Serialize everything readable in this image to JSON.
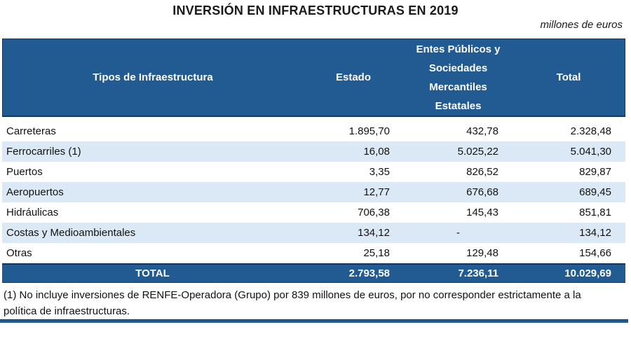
{
  "page": {
    "title": "INVERSIÓN EN INFRAESTRUCTURAS EN 2019",
    "unit_note": "millones de euros",
    "footnote": "(1) No incluye inversiones de RENFE-Operadora (Grupo) por 839 millones de euros, por no corresponder estrictamente a la política de infraestructuras."
  },
  "table": {
    "columns": {
      "infra": "Tipos de Infraestructura",
      "estado": "Estado",
      "entes_lines": [
        "Entes Públicos y",
        "Sociedades",
        "Mercantiles",
        "Estatales"
      ],
      "total": "Total"
    },
    "rows": [
      {
        "label": "Carreteras",
        "estado": "1.895,70",
        "entes": "432,78",
        "total": "2.328,48"
      },
      {
        "label": "Ferrocarriles (1)",
        "estado": "16,08",
        "entes": "5.025,22",
        "total": "5.041,30"
      },
      {
        "label": "Puertos",
        "estado": "3,35",
        "entes": "826,52",
        "total": "829,87"
      },
      {
        "label": "Aeropuertos",
        "estado": "12,77",
        "entes": "676,68",
        "total": "689,45"
      },
      {
        "label": "Hidráulicas",
        "estado": "706,38",
        "entes": "145,43",
        "total": "851,81"
      },
      {
        "label": "Costas y Medioambientales",
        "estado": "134,12",
        "entes": "-",
        "total": "134,12"
      },
      {
        "label": "Otras",
        "estado": "25,18",
        "entes": "129,48",
        "total": "154,66"
      }
    ],
    "total_row": {
      "label": "TOTAL",
      "estado": "2.793,58",
      "entes": "7.236,11",
      "total": "10.029,69"
    }
  },
  "colors": {
    "header_bg": "#215B92",
    "header_text": "#FFFFFF",
    "row_alt_bg": "#DBE9F6",
    "border_dark": "#16365C",
    "text": "#1A1A1A"
  }
}
